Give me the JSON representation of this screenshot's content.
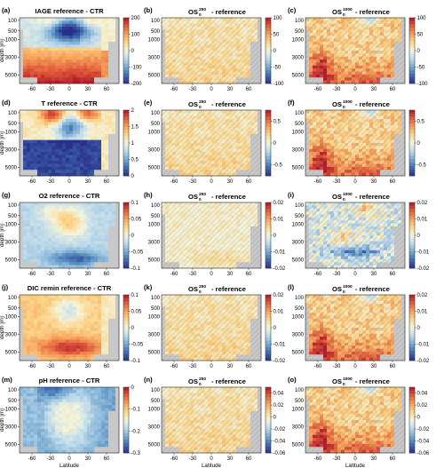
{
  "figure": {
    "ylabel": "depth [m]",
    "xlabel": "Latitude",
    "colors": {
      "land": "#c8c8c8",
      "diverging": [
        "#2a2f8c",
        "#3f6fb0",
        "#79abd2",
        "#bcd9ea",
        "#f4f4dc",
        "#fbd58a",
        "#f6a05a",
        "#e05b3a",
        "#b2182b"
      ]
    },
    "depth_ticks": [
      "100",
      "500",
      "1000",
      "3000",
      "5000"
    ],
    "lat_ticks": [
      "-60",
      "-30",
      "0",
      "30",
      "60"
    ]
  },
  "chart_data": [
    {
      "type": "heatmap",
      "letter": "(a)",
      "title": "IAGE reference - CTR",
      "colorbar_ticks": [
        "200",
        "100",
        "0",
        "-100",
        "-200"
      ],
      "clim": [
        -200,
        200
      ],
      "pattern": "iage",
      "hatch": false
    },
    {
      "type": "heatmap",
      "letter": "(b)",
      "title_prefix": "OS",
      "title_sup": "250",
      "title_sub": "0",
      "title_suffix": " - reference",
      "colorbar_ticks": [
        "100",
        "50",
        "0",
        "-50",
        "-100"
      ],
      "clim": [
        -100,
        100
      ],
      "pattern": "weak_pos",
      "hatch": true
    },
    {
      "type": "heatmap",
      "letter": "(c)",
      "title_prefix": "OS",
      "title_sup": "1000",
      "title_sub": "0",
      "title_suffix": " - reference",
      "colorbar_ticks": [
        "100",
        "50",
        "0",
        "-50",
        "-100"
      ],
      "clim": [
        -100,
        100
      ],
      "pattern": "strong_pos",
      "hatch": true
    },
    {
      "type": "heatmap",
      "letter": "(d)",
      "title": "T reference - CTR",
      "colorbar_ticks": [
        "2",
        "1.5",
        "1",
        "0.5",
        "0"
      ],
      "clim": [
        0,
        2
      ],
      "pattern": "temp",
      "hatch": false
    },
    {
      "type": "heatmap",
      "letter": "(e)",
      "title_prefix": "OS",
      "title_sup": "250",
      "title_sub": "0",
      "title_suffix": " - reference",
      "colorbar_ticks": [
        "0.5",
        "0",
        "-0.5"
      ],
      "clim": [
        -0.75,
        0.75
      ],
      "pattern": "weak_pos",
      "hatch": true
    },
    {
      "type": "heatmap",
      "letter": "(f)",
      "title_prefix": "OS",
      "title_sup": "1000",
      "title_sub": "0",
      "title_suffix": " - reference",
      "colorbar_ticks": [
        "0.5",
        "0",
        "-0.5"
      ],
      "clim": [
        -0.75,
        0.75
      ],
      "pattern": "strong_pos",
      "hatch": true
    },
    {
      "type": "heatmap",
      "letter": "(g)",
      "title": "O2 reference - CTR",
      "colorbar_ticks": [
        "0.1",
        "0.05",
        "0",
        "-0.05",
        "-0.1"
      ],
      "clim": [
        -0.1,
        0.1
      ],
      "pattern": "o2",
      "hatch": false
    },
    {
      "type": "heatmap",
      "letter": "(h)",
      "title_prefix": "OS",
      "title_sup": "250",
      "title_sub": "0",
      "title_suffix": " - reference",
      "colorbar_ticks": [
        "0.02",
        "0.01",
        "0",
        "-0.01",
        "-0.02"
      ],
      "clim": [
        -0.02,
        0.02
      ],
      "pattern": "weak_mixed",
      "hatch": true
    },
    {
      "type": "heatmap",
      "letter": "(i)",
      "title_prefix": "OS",
      "title_sup": "1000",
      "title_sub": "0",
      "title_suffix": " - reference",
      "colorbar_ticks": [
        "0.02",
        "0.01",
        "0",
        "-0.01",
        "-0.02"
      ],
      "clim": [
        -0.02,
        0.02
      ],
      "pattern": "strong_mixed",
      "hatch": true
    },
    {
      "type": "heatmap",
      "letter": "(j)",
      "title": "DIC remin reference - CTR",
      "colorbar_ticks": [
        "0.1",
        "0.05",
        "0",
        "-0.05",
        "-0.1"
      ],
      "clim": [
        -0.1,
        0.1
      ],
      "pattern": "dic",
      "hatch": false
    },
    {
      "type": "heatmap",
      "letter": "(k)",
      "title_prefix": "OS",
      "title_sup": "250",
      "title_sub": "0",
      "title_suffix": " - reference",
      "colorbar_ticks": [
        "0.02",
        "0.01",
        "0",
        "-0.01",
        "-0.02"
      ],
      "clim": [
        -0.02,
        0.02
      ],
      "pattern": "weak_pos",
      "hatch": true
    },
    {
      "type": "heatmap",
      "letter": "(l)",
      "title_prefix": "OS",
      "title_sup": "1000",
      "title_sub": "0",
      "title_suffix": " - reference",
      "colorbar_ticks": [
        "0.02",
        "0.01",
        "0",
        "-0.01",
        "-0.02"
      ],
      "clim": [
        -0.02,
        0.02
      ],
      "pattern": "strong_pos",
      "hatch": true
    },
    {
      "type": "heatmap",
      "letter": "(m)",
      "title": "pH reference - CTR",
      "colorbar_ticks": [
        "0",
        "-0.1",
        "-0.2",
        "-0.3"
      ],
      "clim": [
        -0.3,
        0
      ],
      "pattern": "ph",
      "hatch": false
    },
    {
      "type": "heatmap",
      "letter": "(n)",
      "title_prefix": "OS",
      "title_sup": "250",
      "title_sub": "0",
      "title_suffix": " - reference",
      "colorbar_ticks": [
        "0.04",
        "0.02",
        "0",
        "-0.02",
        "-0.04",
        "-0.06"
      ],
      "clim": [
        -0.06,
        0.05
      ],
      "pattern": "weak_pos",
      "hatch": true
    },
    {
      "type": "heatmap",
      "letter": "(o)",
      "title_prefix": "OS",
      "title_sup": "1000",
      "title_sub": "0",
      "title_suffix": " - reference",
      "colorbar_ticks": [
        "0.04",
        "0.02",
        "0",
        "-0.02",
        "-0.04",
        "-0.06"
      ],
      "clim": [
        -0.06,
        0.05
      ],
      "pattern": "strong_pos",
      "hatch": true
    }
  ]
}
